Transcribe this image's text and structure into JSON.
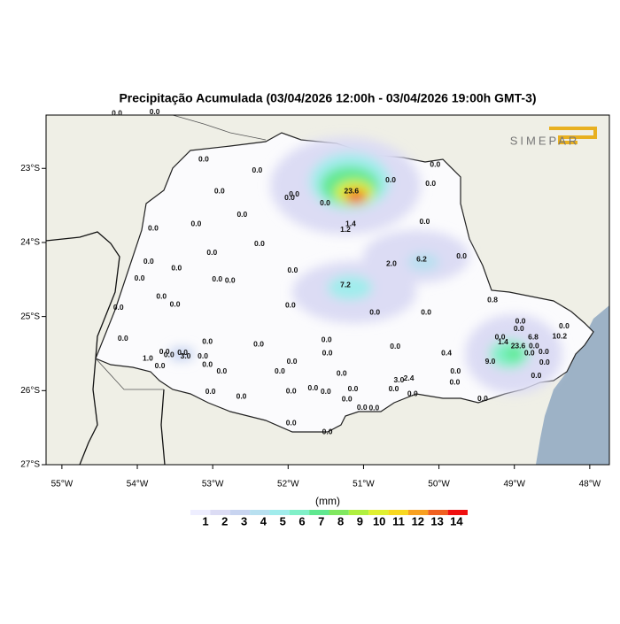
{
  "title": "Precipitação Acumulada (03/04/2026 12:00h - 03/04/2026 19:00h GMT-3)",
  "logo": "SIMEPAR",
  "xlim": [
    -55.21,
    -47.74
  ],
  "ylim": [
    -27,
    -22.28
  ],
  "xticks": [
    {
      "value": -55,
      "label": "55°W"
    },
    {
      "value": -54,
      "label": "54°W"
    },
    {
      "value": -53,
      "label": "53°W"
    },
    {
      "value": -52,
      "label": "52°W"
    },
    {
      "value": -51,
      "label": "51°W"
    },
    {
      "value": -50,
      "label": "50°W"
    },
    {
      "value": -49,
      "label": "49°W"
    },
    {
      "value": -48,
      "label": "48°W"
    }
  ],
  "yticks": [
    {
      "value": -23,
      "label": "23°S"
    },
    {
      "value": -24,
      "label": "24°S"
    },
    {
      "value": -25,
      "label": "25°S"
    },
    {
      "value": -26,
      "label": "26°S"
    },
    {
      "value": -27,
      "label": "27°S"
    }
  ],
  "colorbar": {
    "unit": "(mm)",
    "levels": [
      1,
      2,
      3,
      4,
      5,
      6,
      7,
      8,
      9,
      10,
      11,
      12,
      13,
      14
    ],
    "colors": [
      "#eeeeff",
      "#dcdcf4",
      "#c8d4f0",
      "#b8e0f0",
      "#a0ecec",
      "#80f0c8",
      "#60e890",
      "#80e860",
      "#b0f040",
      "#e0f030",
      "#f8d820",
      "#f8a020",
      "#f06020",
      "#f01010"
    ]
  },
  "stations": [
    {
      "lon": -54.27,
      "lat": -22.26,
      "label": "0.0"
    },
    {
      "lon": -53.77,
      "lat": -22.24,
      "label": "0.0"
    },
    {
      "lon": -53.12,
      "lat": -22.88,
      "label": "0.0"
    },
    {
      "lon": -52.41,
      "lat": -23.03,
      "label": "0.0"
    },
    {
      "lon": -52.91,
      "lat": -23.31,
      "label": "0.0"
    },
    {
      "lon": -51.92,
      "lat": -23.35,
      "label": "0.0"
    },
    {
      "lon": -51.98,
      "lat": -23.4,
      "label": "0.0"
    },
    {
      "lon": -51.51,
      "lat": -23.47,
      "label": "0.0"
    },
    {
      "lon": -51.16,
      "lat": -23.31,
      "label": "23.6"
    },
    {
      "lon": -50.64,
      "lat": -23.16,
      "label": "0.0"
    },
    {
      "lon": -50.05,
      "lat": -22.95,
      "label": "0.0"
    },
    {
      "lon": -50.11,
      "lat": -23.21,
      "label": "0.0"
    },
    {
      "lon": -51.17,
      "lat": -23.75,
      "label": "1.4"
    },
    {
      "lon": -51.24,
      "lat": -23.83,
      "label": "1.2"
    },
    {
      "lon": -50.19,
      "lat": -23.72,
      "label": "0.0"
    },
    {
      "lon": -52.61,
      "lat": -23.63,
      "label": "0.0"
    },
    {
      "lon": -53.22,
      "lat": -23.75,
      "label": "0.0"
    },
    {
      "lon": -53.79,
      "lat": -23.81,
      "label": "0.0"
    },
    {
      "lon": -52.38,
      "lat": -24.02,
      "label": "0.0"
    },
    {
      "lon": -53.01,
      "lat": -24.14,
      "label": "0.0"
    },
    {
      "lon": -53.85,
      "lat": -24.26,
      "label": "0.0"
    },
    {
      "lon": -53.48,
      "lat": -24.35,
      "label": "0.0"
    },
    {
      "lon": -53.97,
      "lat": -24.49,
      "label": "0.0"
    },
    {
      "lon": -52.94,
      "lat": -24.5,
      "label": "0.0"
    },
    {
      "lon": -52.77,
      "lat": -24.52,
      "label": "0.0"
    },
    {
      "lon": -51.94,
      "lat": -24.38,
      "label": "0.0"
    },
    {
      "lon": -50.63,
      "lat": -24.29,
      "label": "2.0"
    },
    {
      "lon": -50.23,
      "lat": -24.23,
      "label": "6.2"
    },
    {
      "lon": -49.7,
      "lat": -24.19,
      "label": "0.0"
    },
    {
      "lon": -51.24,
      "lat": -24.58,
      "label": "7.2"
    },
    {
      "lon": -53.68,
      "lat": -24.73,
      "label": "0.0"
    },
    {
      "lon": -53.5,
      "lat": -24.84,
      "label": "0.0"
    },
    {
      "lon": -54.25,
      "lat": -24.88,
      "label": "0.0"
    },
    {
      "lon": -51.97,
      "lat": -24.85,
      "label": "0.0"
    },
    {
      "lon": -50.85,
      "lat": -24.95,
      "label": "0.0"
    },
    {
      "lon": -50.17,
      "lat": -24.95,
      "label": "0.0"
    },
    {
      "lon": -49.29,
      "lat": -24.78,
      "label": "0.8"
    },
    {
      "lon": -54.19,
      "lat": -25.3,
      "label": "0.0"
    },
    {
      "lon": -53.07,
      "lat": -25.34,
      "label": "0.0"
    },
    {
      "lon": -52.39,
      "lat": -25.38,
      "label": "0.0"
    },
    {
      "lon": -51.49,
      "lat": -25.32,
      "label": "0.0"
    },
    {
      "lon": -50.58,
      "lat": -25.41,
      "label": "0.0"
    },
    {
      "lon": -51.48,
      "lat": -25.5,
      "label": "0.0"
    },
    {
      "lon": -53.64,
      "lat": -25.48,
      "label": "0.0"
    },
    {
      "lon": -53.4,
      "lat": -25.49,
      "label": "0.0"
    },
    {
      "lon": -53.58,
      "lat": -25.52,
      "label": "0.0"
    },
    {
      "lon": -53.36,
      "lat": -25.54,
      "label": "3.0"
    },
    {
      "lon": -53.13,
      "lat": -25.54,
      "label": "0.0"
    },
    {
      "lon": -53.86,
      "lat": -25.57,
      "label": "1.0"
    },
    {
      "lon": -53.7,
      "lat": -25.67,
      "label": "0.0"
    },
    {
      "lon": -53.07,
      "lat": -25.65,
      "label": "0.0"
    },
    {
      "lon": -52.88,
      "lat": -25.74,
      "label": "0.0"
    },
    {
      "lon": -52.11,
      "lat": -25.74,
      "label": "0.0"
    },
    {
      "lon": -51.95,
      "lat": -25.61,
      "label": "0.0"
    },
    {
      "lon": -51.29,
      "lat": -25.77,
      "label": "0.0"
    },
    {
      "lon": -53.03,
      "lat": -26.02,
      "label": "0.0"
    },
    {
      "lon": -52.62,
      "lat": -26.08,
      "label": "0.0"
    },
    {
      "lon": -51.96,
      "lat": -26.01,
      "label": "0.0"
    },
    {
      "lon": -51.67,
      "lat": -25.97,
      "label": "0.0"
    },
    {
      "lon": -51.5,
      "lat": -26.02,
      "label": "0.0"
    },
    {
      "lon": -51.14,
      "lat": -25.98,
      "label": "0.0"
    },
    {
      "lon": -51.22,
      "lat": -26.12,
      "label": "0.0"
    },
    {
      "lon": -51.02,
      "lat": -26.23,
      "label": "0.0"
    },
    {
      "lon": -50.86,
      "lat": -26.24,
      "label": "0.0"
    },
    {
      "lon": -50.53,
      "lat": -25.86,
      "label": "3.0"
    },
    {
      "lon": -50.4,
      "lat": -25.84,
      "label": "2.4"
    },
    {
      "lon": -50.6,
      "lat": -25.98,
      "label": "0.0"
    },
    {
      "lon": -50.35,
      "lat": -26.05,
      "label": "0.0"
    },
    {
      "lon": -49.9,
      "lat": -25.5,
      "label": "0.4"
    },
    {
      "lon": -49.78,
      "lat": -25.74,
      "label": "0.0"
    },
    {
      "lon": -49.79,
      "lat": -25.89,
      "label": "0.0"
    },
    {
      "lon": -49.42,
      "lat": -26.11,
      "label": "0.0"
    },
    {
      "lon": -49.32,
      "lat": -25.61,
      "label": "9.0"
    },
    {
      "lon": -49.19,
      "lat": -25.28,
      "label": "0.0"
    },
    {
      "lon": -49.15,
      "lat": -25.35,
      "label": "1.4"
    },
    {
      "lon": -48.92,
      "lat": -25.07,
      "label": "0.0"
    },
    {
      "lon": -48.94,
      "lat": -25.17,
      "label": "0.0"
    },
    {
      "lon": -48.75,
      "lat": -25.28,
      "label": "6.8"
    },
    {
      "lon": -48.95,
      "lat": -25.4,
      "label": "23.6"
    },
    {
      "lon": -48.74,
      "lat": -25.4,
      "label": "0.0"
    },
    {
      "lon": -48.8,
      "lat": -25.5,
      "label": "0.0"
    },
    {
      "lon": -48.61,
      "lat": -25.48,
      "label": "0.0"
    },
    {
      "lon": -48.4,
      "lat": -25.27,
      "label": "10.2"
    },
    {
      "lon": -48.34,
      "lat": -25.13,
      "label": "0.0"
    },
    {
      "lon": -48.71,
      "lat": -25.8,
      "label": "0.0"
    },
    {
      "lon": -48.6,
      "lat": -25.62,
      "label": "0.0"
    },
    {
      "lon": -51.96,
      "lat": -26.44,
      "label": "0.0"
    },
    {
      "lon": -51.48,
      "lat": -26.56,
      "label": "0.0"
    }
  ]
}
